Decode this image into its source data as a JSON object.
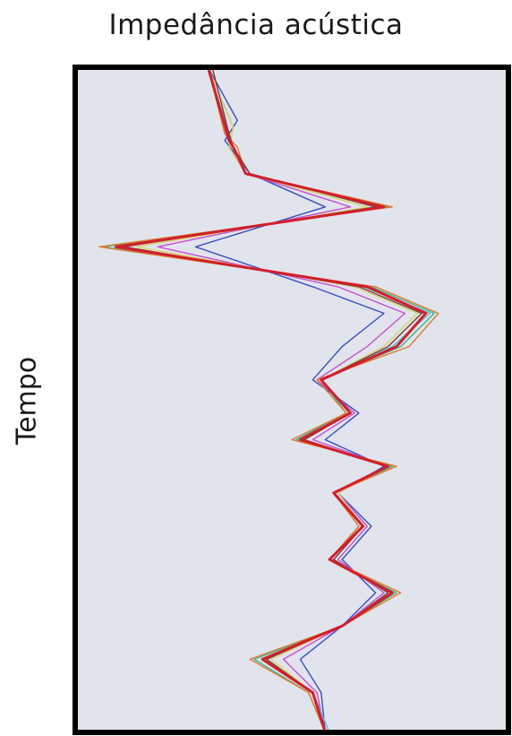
{
  "chart_data": {
    "type": "line",
    "title": "Impedância acústica",
    "xlabel": "",
    "ylabel": "Tempo",
    "xlim": [
      0,
      1
    ],
    "ylim": [
      0,
      100
    ],
    "y_inverted": true,
    "grid": false,
    "legend": "none",
    "background_color": "#e1e4ec",
    "frame_color": "#000000",
    "series": [
      {
        "color": "#d21f2b",
        "y": [
          0,
          11,
          12,
          16,
          21,
          27,
          33,
          37,
          42,
          47,
          52,
          56,
          60,
          64,
          69,
          74,
          79,
          84,
          89,
          94,
          100
        ],
        "x": [
          0.3,
          0.35,
          0.36,
          0.39,
          0.72,
          0.08,
          0.68,
          0.82,
          0.75,
          0.57,
          0.64,
          0.52,
          0.73,
          0.6,
          0.67,
          0.59,
          0.74,
          0.62,
          0.43,
          0.55,
          0.58
        ]
      },
      {
        "color": "#3a4fc0",
        "y": [
          0,
          8,
          11,
          16,
          21,
          27,
          33,
          37,
          42,
          47,
          52,
          56,
          60,
          64,
          69,
          74,
          79,
          84,
          89,
          94,
          100
        ],
        "x": [
          0.3,
          0.37,
          0.34,
          0.4,
          0.58,
          0.27,
          0.55,
          0.72,
          0.62,
          0.55,
          0.66,
          0.58,
          0.72,
          0.61,
          0.69,
          0.62,
          0.7,
          0.62,
          0.52,
          0.57,
          0.58
        ]
      },
      {
        "color": "#c64fd0",
        "y": [
          0,
          9,
          12,
          16,
          21,
          27,
          33,
          37,
          42,
          47,
          52,
          56,
          60,
          64,
          69,
          74,
          79,
          84,
          89,
          94,
          100
        ],
        "x": [
          0.3,
          0.36,
          0.35,
          0.39,
          0.64,
          0.18,
          0.61,
          0.77,
          0.68,
          0.56,
          0.65,
          0.55,
          0.73,
          0.61,
          0.68,
          0.61,
          0.72,
          0.62,
          0.48,
          0.56,
          0.58
        ]
      },
      {
        "color": "#d8d36a",
        "y": [
          0,
          9,
          12,
          16,
          21,
          27,
          33,
          37,
          42,
          47,
          52,
          56,
          60,
          64,
          69,
          74,
          79,
          84,
          89,
          94,
          100
        ],
        "x": [
          0.3,
          0.36,
          0.35,
          0.39,
          0.68,
          0.13,
          0.65,
          0.8,
          0.72,
          0.57,
          0.64,
          0.53,
          0.73,
          0.61,
          0.67,
          0.6,
          0.73,
          0.62,
          0.45,
          0.55,
          0.58
        ]
      },
      {
        "color": "#3fb48c",
        "y": [
          0,
          10,
          12,
          16,
          21,
          27,
          33,
          37,
          42,
          47,
          52,
          56,
          60,
          64,
          69,
          74,
          79,
          84,
          89,
          94,
          100
        ],
        "x": [
          0.3,
          0.35,
          0.36,
          0.39,
          0.73,
          0.05,
          0.69,
          0.84,
          0.76,
          0.57,
          0.63,
          0.51,
          0.74,
          0.6,
          0.66,
          0.59,
          0.75,
          0.62,
          0.41,
          0.54,
          0.58
        ]
      },
      {
        "color": "#e07a2c",
        "y": [
          0,
          10,
          12,
          16,
          21,
          27,
          33,
          37,
          42,
          47,
          52,
          56,
          60,
          64,
          69,
          74,
          79,
          84,
          89,
          94,
          100
        ],
        "x": [
          0.3,
          0.34,
          0.37,
          0.39,
          0.74,
          0.04,
          0.7,
          0.85,
          0.78,
          0.56,
          0.63,
          0.5,
          0.75,
          0.6,
          0.66,
          0.59,
          0.76,
          0.62,
          0.4,
          0.54,
          0.58
        ]
      },
      {
        "color": "#4fc0d8",
        "y": [
          0,
          10,
          12,
          16,
          21,
          27,
          33,
          37,
          42,
          47,
          52,
          56,
          60,
          64,
          69,
          74,
          79,
          84,
          89,
          94,
          100
        ],
        "x": [
          0.3,
          0.35,
          0.36,
          0.39,
          0.71,
          0.08,
          0.67,
          0.83,
          0.74,
          0.57,
          0.64,
          0.52,
          0.73,
          0.6,
          0.67,
          0.59,
          0.74,
          0.62,
          0.44,
          0.55,
          0.59
        ]
      },
      {
        "color": "#7a3a3a",
        "y": [
          0,
          10,
          12,
          16,
          21,
          27,
          33,
          37,
          42,
          47,
          52,
          56,
          60,
          64,
          69,
          74,
          79,
          84,
          89,
          94,
          100
        ],
        "x": [
          0.31,
          0.35,
          0.36,
          0.4,
          0.7,
          0.1,
          0.66,
          0.81,
          0.73,
          0.57,
          0.64,
          0.53,
          0.73,
          0.6,
          0.67,
          0.6,
          0.73,
          0.62,
          0.44,
          0.55,
          0.58
        ]
      }
    ]
  }
}
